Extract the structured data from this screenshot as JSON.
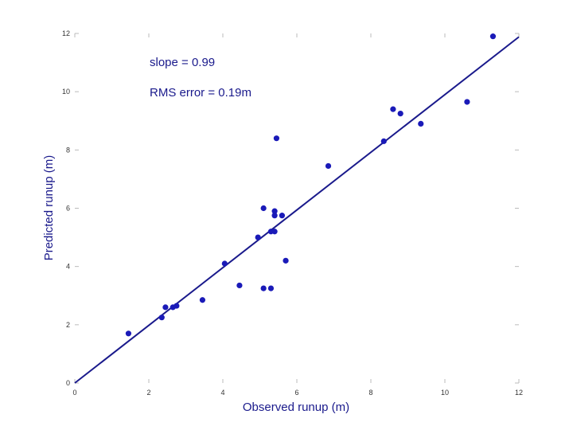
{
  "chart_data": {
    "type": "scatter",
    "xlabel": "Observed runup (m)",
    "ylabel": "Predicted runup (m)",
    "xlim": [
      0,
      12
    ],
    "ylim": [
      0,
      12
    ],
    "xticks": [
      0,
      2,
      4,
      6,
      8,
      10,
      12
    ],
    "yticks": [
      0,
      2,
      4,
      6,
      8,
      10,
      12
    ],
    "grid": false,
    "annotations": [
      "slope = 0.99",
      "RMS error = 0.19m"
    ],
    "series": [
      {
        "points": [
          [
            1.45,
            1.7
          ],
          [
            2.35,
            2.25
          ],
          [
            2.45,
            2.6
          ],
          [
            2.65,
            2.6
          ],
          [
            2.75,
            2.65
          ],
          [
            3.45,
            2.85
          ],
          [
            4.05,
            4.1
          ],
          [
            4.45,
            3.35
          ],
          [
            4.95,
            5.0
          ],
          [
            5.1,
            6.0
          ],
          [
            5.1,
            3.25
          ],
          [
            5.3,
            5.2
          ],
          [
            5.3,
            3.25
          ],
          [
            5.4,
            5.2
          ],
          [
            5.4,
            5.9
          ],
          [
            5.4,
            5.75
          ],
          [
            5.45,
            8.4
          ],
          [
            5.6,
            5.75
          ],
          [
            5.7,
            4.2
          ],
          [
            6.85,
            7.45
          ],
          [
            8.35,
            8.3
          ],
          [
            8.6,
            9.4
          ],
          [
            8.8,
            9.25
          ],
          [
            9.35,
            8.9
          ],
          [
            10.6,
            9.65
          ],
          [
            11.3,
            11.9
          ]
        ],
        "color": "#1a1ab8"
      }
    ],
    "fit_line": {
      "slope": 0.99,
      "intercept": 0,
      "color": "#1a1a8c"
    }
  }
}
